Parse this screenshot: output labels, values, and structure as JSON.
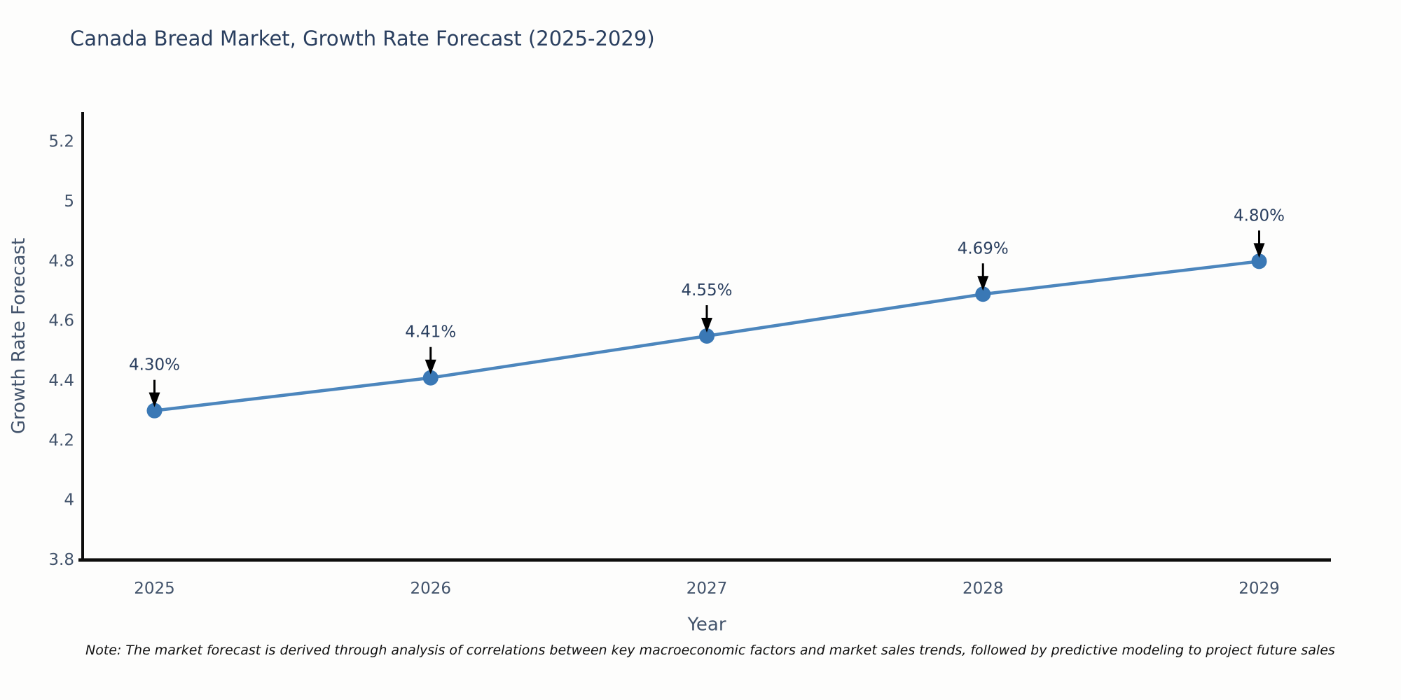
{
  "title": "Canada Bread Market, Growth Rate Forecast (2025-2029)",
  "note": "Note: The market forecast is derived through analysis of correlations between key macroeconomic factors and market sales trends, followed by predictive modeling to project future sales",
  "chart_data": {
    "type": "line",
    "title": "Canada Bread Market, Growth Rate Forecast (2025-2029)",
    "xlabel": "Year",
    "ylabel": "Growth Rate Forecast",
    "x": [
      2025,
      2026,
      2027,
      2028,
      2029
    ],
    "y": [
      4.3,
      4.41,
      4.55,
      4.69,
      4.8
    ],
    "point_labels": [
      "4.30%",
      "4.41%",
      "4.55%",
      "4.69%",
      "4.80%"
    ],
    "xticks": [
      2025,
      2026,
      2027,
      2028,
      2029
    ],
    "xtick_labels": [
      "2025",
      "2026",
      "2027",
      "2028",
      "2029"
    ],
    "yticks": [
      3.8,
      4.0,
      4.2,
      4.4,
      4.6,
      4.8,
      5.0,
      5.2
    ],
    "ytick_labels": [
      "3.8",
      "4",
      "4.2",
      "4.4",
      "4.6",
      "4.8",
      "5",
      "5.2"
    ],
    "xlim": [
      2024.74,
      2029.26
    ],
    "ylim": [
      3.8,
      5.3
    ],
    "grid": false,
    "legend": false,
    "colors": {
      "line": "#4c86bd",
      "marker": "#3a78b5",
      "axis": "#0d0d0d",
      "tick_text": "#42536b",
      "axis_title_text": "#42536b",
      "title_text": "#2a3f5f",
      "annotation_text": "#2a3f5f",
      "arrow": "#000000",
      "background": "#fdfdfc"
    }
  }
}
